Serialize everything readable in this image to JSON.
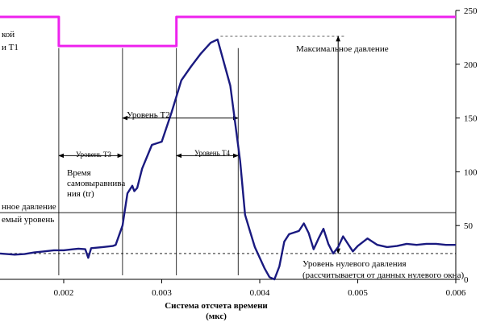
{
  "chart_data": {
    "type": "line",
    "title": "",
    "xlabel": "Система отсчета времени",
    "xlabel_unit": "(мкс)",
    "xlim": [
      0.00135,
      0.006
    ],
    "ylim": [
      0,
      250
    ],
    "x_ticks": [
      0.002,
      0.003,
      0.004,
      0.005,
      0.006
    ],
    "x_tick_labels": [
      "0.002",
      "0.003",
      "0.004",
      "0.005",
      "0.006"
    ],
    "y_ticks": [
      0,
      50,
      100,
      150,
      200,
      250
    ],
    "y_tick_labels": [
      "0",
      "50",
      "100",
      "150",
      "200",
      "250"
    ],
    "y_axis_side": "right",
    "grid": false,
    "series": [
      {
        "role": "pressure",
        "color": "#1a1a80",
        "points": [
          [
            0.00135,
            24
          ],
          [
            0.0015,
            23
          ],
          [
            0.0016,
            23.5
          ],
          [
            0.0017,
            25
          ],
          [
            0.0018,
            26
          ],
          [
            0.0019,
            27
          ],
          [
            0.002,
            27
          ],
          [
            0.0021,
            28
          ],
          [
            0.00215,
            28.5
          ],
          [
            0.00222,
            28
          ],
          [
            0.00225,
            20
          ],
          [
            0.00228,
            29
          ],
          [
            0.0024,
            30
          ],
          [
            0.0025,
            31
          ],
          [
            0.00253,
            32
          ],
          [
            0.0026,
            50
          ],
          [
            0.00265,
            80
          ],
          [
            0.0027,
            87
          ],
          [
            0.00272,
            82
          ],
          [
            0.00275,
            85
          ],
          [
            0.0028,
            103
          ],
          [
            0.0029,
            125
          ],
          [
            0.003,
            128
          ],
          [
            0.0031,
            155
          ],
          [
            0.0032,
            185
          ],
          [
            0.0033,
            198
          ],
          [
            0.0034,
            210
          ],
          [
            0.0035,
            220
          ],
          [
            0.00357,
            223
          ],
          [
            0.0036,
            213
          ],
          [
            0.0037,
            180
          ],
          [
            0.0038,
            110
          ],
          [
            0.00385,
            60
          ],
          [
            0.0039,
            45
          ],
          [
            0.00395,
            30
          ],
          [
            0.004,
            20
          ],
          [
            0.00405,
            10
          ],
          [
            0.0041,
            2
          ],
          [
            0.00415,
            0
          ],
          [
            0.0042,
            12
          ],
          [
            0.00425,
            35
          ],
          [
            0.0043,
            42
          ],
          [
            0.0044,
            45
          ],
          [
            0.00445,
            52
          ],
          [
            0.0045,
            43
          ],
          [
            0.00455,
            28
          ],
          [
            0.0046,
            38
          ],
          [
            0.00465,
            47
          ],
          [
            0.0047,
            33
          ],
          [
            0.00475,
            24
          ],
          [
            0.0048,
            30
          ],
          [
            0.00485,
            40
          ],
          [
            0.0049,
            33
          ],
          [
            0.00495,
            26
          ],
          [
            0.005,
            31
          ],
          [
            0.0051,
            38
          ],
          [
            0.0052,
            32
          ],
          [
            0.0053,
            30
          ],
          [
            0.0054,
            31
          ],
          [
            0.0055,
            33
          ],
          [
            0.0056,
            32
          ],
          [
            0.0057,
            33
          ],
          [
            0.0058,
            33
          ],
          [
            0.0059,
            32
          ],
          [
            0.006,
            32
          ]
        ]
      },
      {
        "role": "level",
        "color": "#ee22ee",
        "points": [
          [
            0.00135,
            244
          ],
          [
            0.00195,
            244
          ],
          [
            0.00195,
            217
          ],
          [
            0.00315,
            217
          ],
          [
            0.00315,
            244
          ],
          [
            0.006,
            244
          ]
        ]
      }
    ],
    "reference_lines": [
      {
        "role": "solid",
        "y": 62
      },
      {
        "role": "dashed",
        "y": 24
      },
      {
        "role": "max-dashed",
        "y": 226,
        "x_from": 0.0036,
        "x_to": 0.0048
      }
    ],
    "markers": {
      "x_lines": [
        0.00195,
        0.0026,
        0.00315,
        0.00378
      ],
      "t3": {
        "from": 0.00195,
        "to": 0.0026,
        "y": 115
      },
      "t2": {
        "from": 0.0026,
        "to": 0.00378,
        "y": 150
      },
      "t4": {
        "from": 0.00315,
        "to": 0.00378,
        "y": 115
      },
      "max_arrow_x": 0.0048
    },
    "annotations": {
      "t1_line1": "кой",
      "t1_line2": "и Т1",
      "max_pressure": "Максимальное давление",
      "t2": "Уровень Т2",
      "t3": "Уровень Т3",
      "t4": "Уровень Т4",
      "time_line1": "Время",
      "time_line2": "самовыравнива",
      "time_line3": "ния (tr)",
      "left_line1": "нное давление",
      "left_line2": "емый уровень",
      "zero_line1": "Уровень нулевого давления",
      "zero_line2": "(рассчитывается от данных нулевого окна)"
    }
  }
}
